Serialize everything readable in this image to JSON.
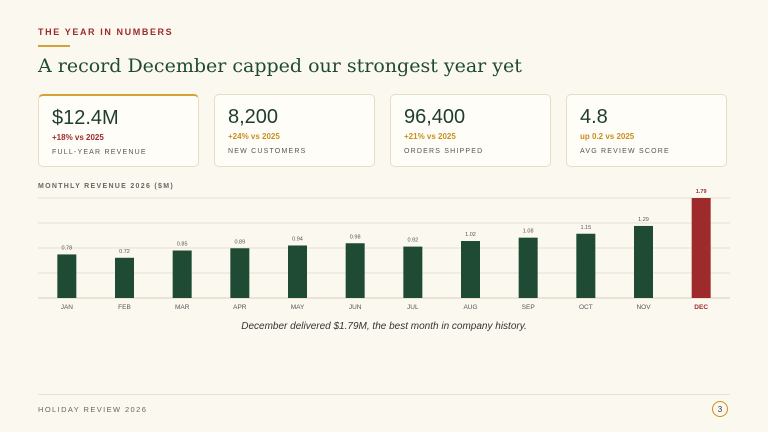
{
  "header": {
    "eyebrow": "THE YEAR IN NUMBERS",
    "title": "A record December capped our strongest year yet"
  },
  "cards": [
    {
      "value": "$12.4M",
      "delta": "+18% vs 2025",
      "label": "FULL-YEAR REVENUE",
      "delta_color": "#9e2a2b"
    },
    {
      "value": "8,200",
      "delta": "+24% vs 2025",
      "label": "NEW CUSTOMERS",
      "delta_color": "#c8901e"
    },
    {
      "value": "96,400",
      "delta": "+21% vs 2025",
      "label": "ORDERS SHIPPED",
      "delta_color": "#c8901e"
    },
    {
      "value": "4.8",
      "delta": "up 0.2 vs 2025",
      "label": "AVG REVIEW SCORE",
      "delta_color": "#c8901e"
    }
  ],
  "chart_data": {
    "type": "bar",
    "title": "MONTHLY REVENUE 2026 ($M)",
    "categories": [
      "JAN",
      "FEB",
      "MAR",
      "APR",
      "MAY",
      "JUN",
      "JUL",
      "AUG",
      "SEP",
      "OCT",
      "NOV",
      "DEC"
    ],
    "values": [
      0.78,
      0.72,
      0.85,
      0.89,
      0.94,
      0.98,
      0.92,
      1.02,
      1.08,
      1.15,
      1.29,
      1.79
    ],
    "value_labels": [
      "0.78",
      "0.72",
      "0.85",
      "0.89",
      "0.94",
      "0.98",
      "0.92",
      "1.02",
      "1.08",
      "1.15",
      "1.29",
      "1.79"
    ],
    "highlight_index": 11,
    "colors": {
      "bar": "#1f4a34",
      "highlight": "#9e2a2b",
      "grid": "#e6dfcf"
    },
    "ylim": [
      0,
      1.79
    ],
    "grid": true
  },
  "caption": "December delivered $1.79M, the best month in company history.",
  "footer": {
    "text": "HOLIDAY REVIEW 2026",
    "page": "3"
  }
}
